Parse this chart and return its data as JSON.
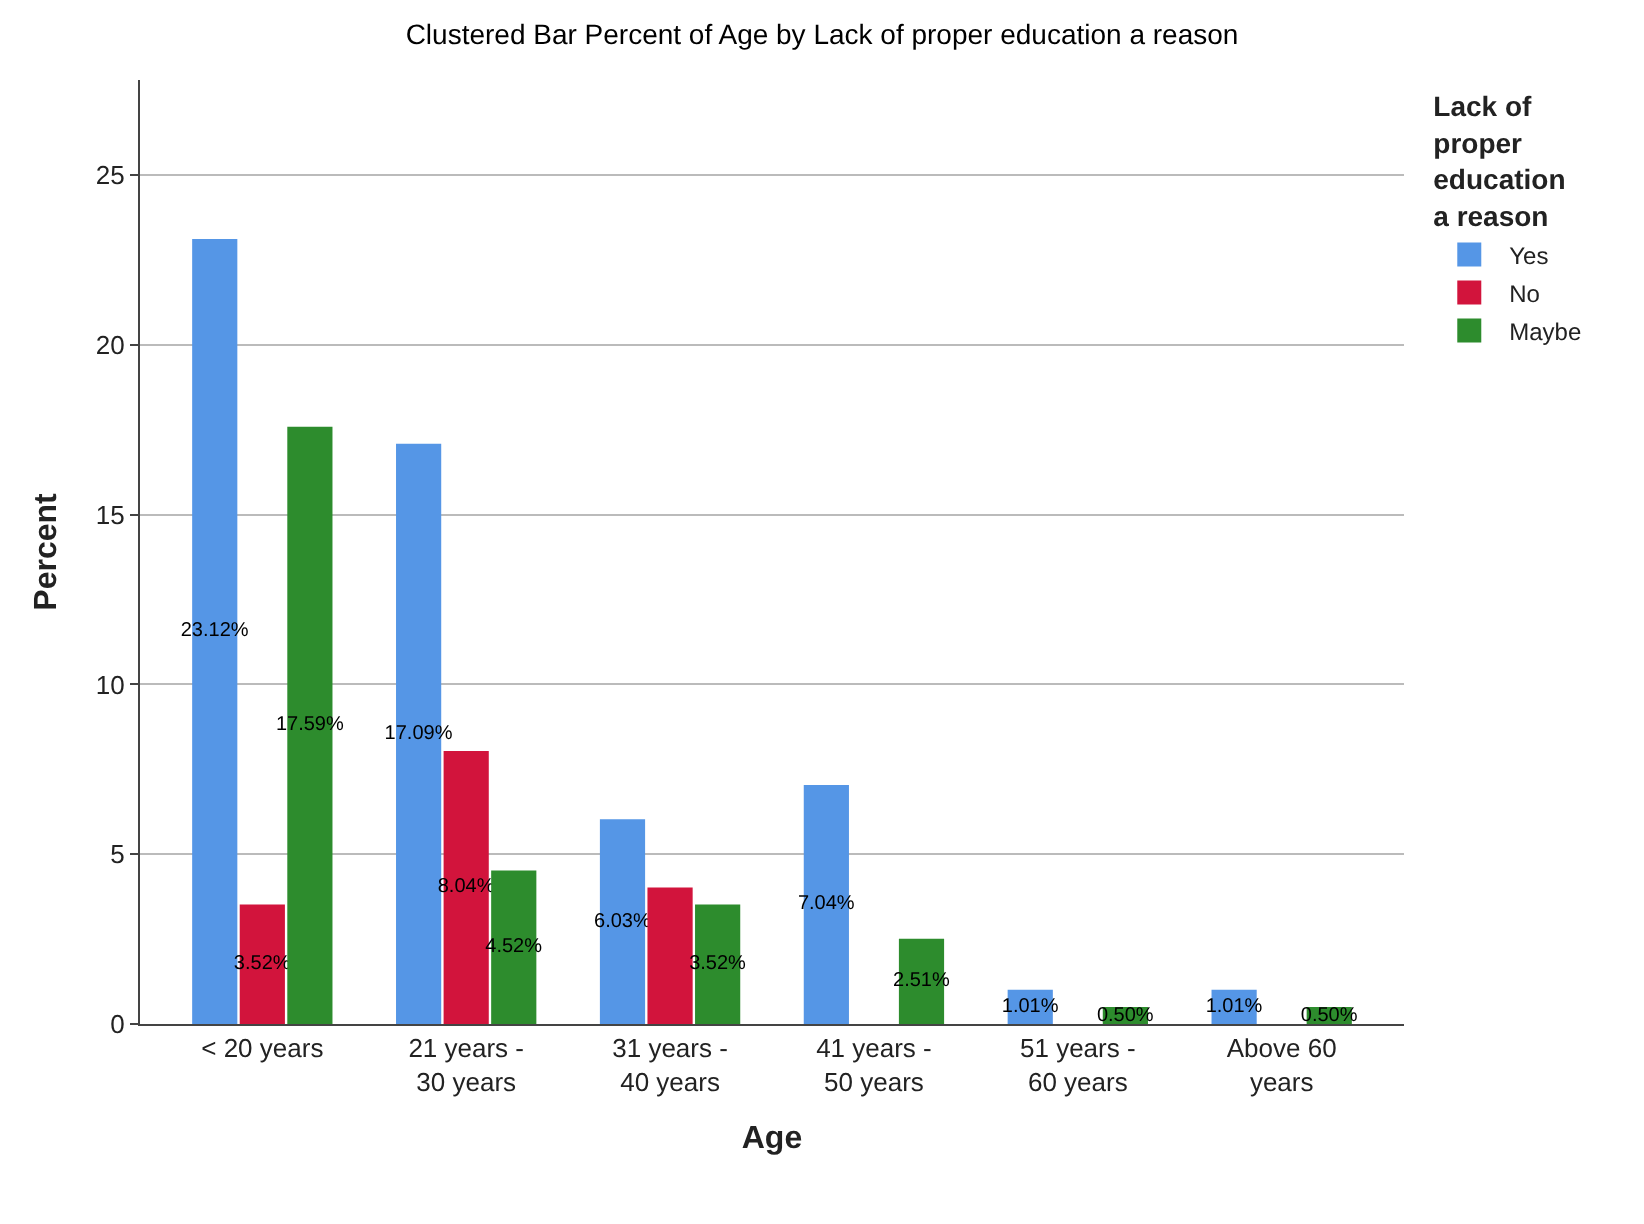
{
  "chart_data": {
    "type": "bar",
    "title": "Clustered Bar Percent of Age by Lack of proper education a reason",
    "xlabel": "Age",
    "ylabel": "Percent",
    "legend_title": "Lack of\nproper\neducation\na reason",
    "categories": [
      "< 20 years",
      "21 years -\n30 years",
      "31 years -\n40 years",
      "41 years -\n50 years",
      "51 years -\n60 years",
      "Above 60\nyears"
    ],
    "series": [
      {
        "name": "Yes",
        "color": "#5596e6",
        "values": [
          23.12,
          17.09,
          6.03,
          7.04,
          1.01,
          1.01
        ],
        "value_labels": [
          "23.12%",
          "17.09%",
          "6.03%",
          "7.04%",
          "1.01%",
          "1.01%"
        ]
      },
      {
        "name": "No",
        "color": "#d2143c",
        "values": [
          3.52,
          8.04,
          4.02,
          null,
          null,
          null
        ],
        "value_labels": [
          "3.52%",
          "8.04%",
          null,
          null,
          null,
          null
        ]
      },
      {
        "name": "Maybe",
        "color": "#2d8c2d",
        "values": [
          17.59,
          4.52,
          3.52,
          2.51,
          0.5,
          0.5
        ],
        "value_labels": [
          "17.59%",
          "4.52%",
          "3.52%",
          "2.51%",
          "0.50%",
          "0.50%"
        ]
      }
    ],
    "ylim": [
      0,
      27.8
    ],
    "yticks": [
      0,
      5,
      10,
      15,
      20,
      25
    ],
    "grid": "y",
    "legend": "top right"
  }
}
